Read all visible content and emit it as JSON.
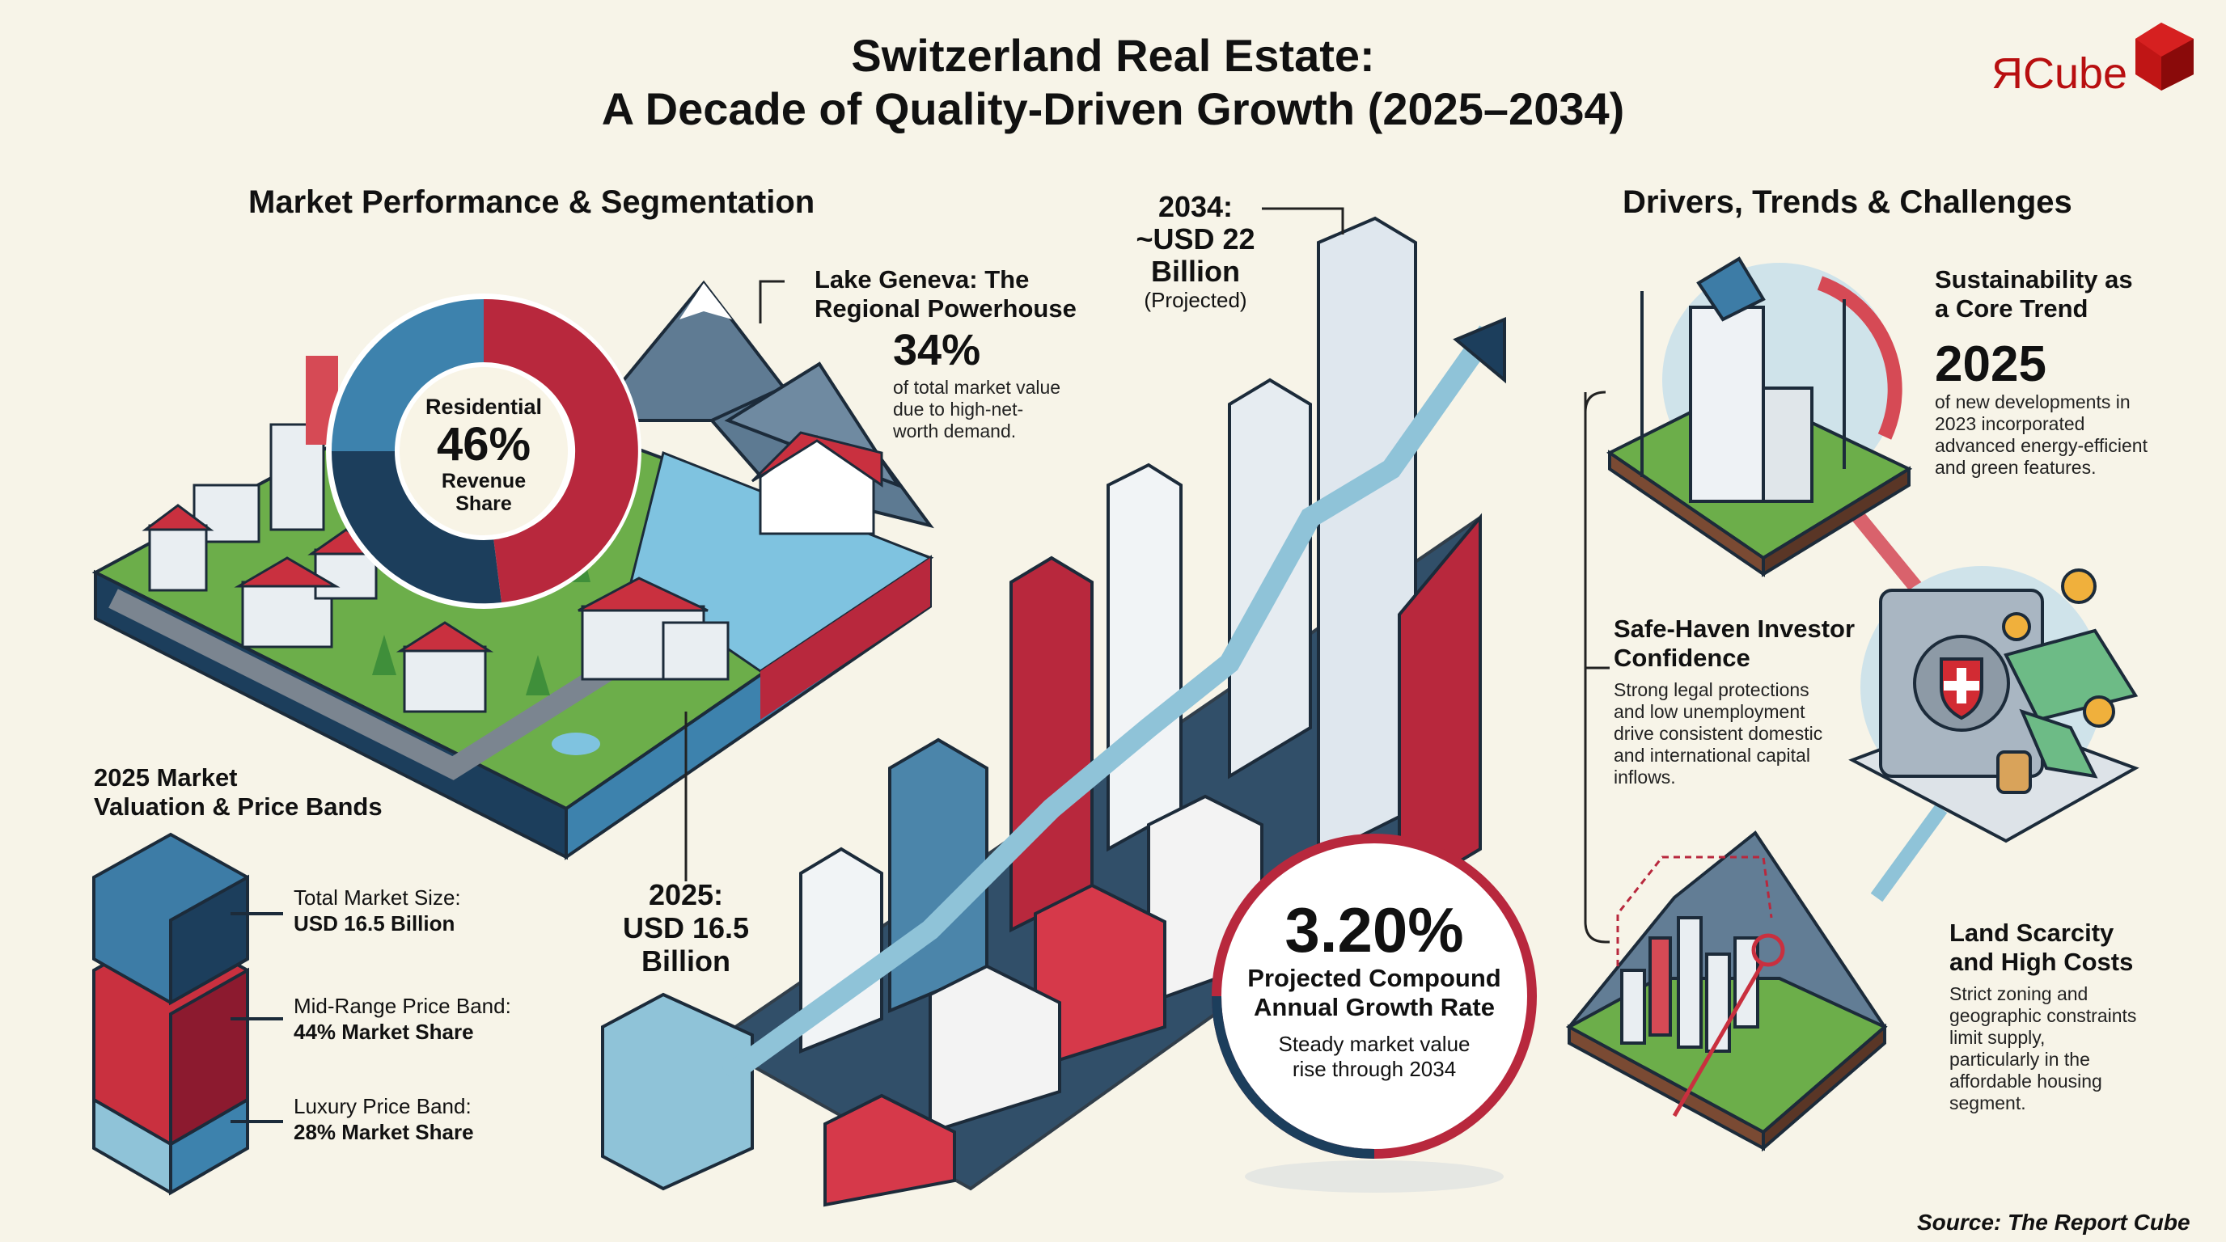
{
  "header": {
    "title_line1": "Switzerland Real Estate:",
    "title_line2": "A Decade of Quality-Driven Growth (2025–2034)",
    "logo_text": "ЯCube"
  },
  "left": {
    "section_title": "Market Performance & Segmentation",
    "donut": {
      "label_top": "Residential",
      "value": "46%",
      "label_bottom_1": "Revenue",
      "label_bottom_2": "Share",
      "share_percent": 46
    },
    "lake_geneva": {
      "title_1": "Lake Geneva: The",
      "title_2": "Regional Powerhouse",
      "value": "34%",
      "desc_1": "of total market value",
      "desc_2": "due to high-net-",
      "desc_3": "worth demand."
    },
    "valuation": {
      "title_1": "2025 Market",
      "title_2": "Valuation & Price Bands",
      "items": [
        {
          "label": "Total Market Size:",
          "value": "USD 16.5 Billion"
        },
        {
          "label": "Mid-Range Price Band:",
          "value": "44% Market Share"
        },
        {
          "label": "Luxury Price Band:",
          "value": "28% Market Share"
        }
      ]
    }
  },
  "center": {
    "end": {
      "line1": "2034:",
      "line2": "~USD 22",
      "line3": "Billion",
      "note": "(Projected)"
    },
    "start": {
      "line1": "2025:",
      "line2": "USD 16.5",
      "line3": "Billion"
    },
    "cagr": {
      "value": "3.20%",
      "label_1": "Projected Compound",
      "label_2": "Annual Growth Rate",
      "note_1": "Steady market value",
      "note_2": "rise through 2034"
    }
  },
  "right": {
    "section_title": "Drivers, Trends & Challenges",
    "sustainability": {
      "title_1": "Sustainability as",
      "title_2": "a Core Trend",
      "value": "2025",
      "desc": [
        "of new developments in",
        "2023 incorporated",
        "advanced energy-efficient",
        "and green features."
      ]
    },
    "safe_haven": {
      "title_1": "Safe-Haven Investor",
      "title_2": "Confidence",
      "desc": [
        "Strong legal protections",
        "and low unemployment",
        "drive consistent domestic",
        "and international capital",
        "inflows."
      ]
    },
    "land": {
      "title_1": "Land Scarcity",
      "title_2": "and High Costs",
      "desc": [
        "Strict zoning and",
        "geographic constraints",
        "limit supply,",
        "particularly in the",
        "affordable housing",
        "segment."
      ]
    }
  },
  "footer": {
    "source": "Source: The Report Cube"
  },
  "colors": {
    "background": "#f7f4e8",
    "red": "#b8283d",
    "blue": "#3d82ad",
    "navy": "#1c3e5c",
    "light_blue": "#8fc3d8",
    "green": "#6cae4a"
  }
}
